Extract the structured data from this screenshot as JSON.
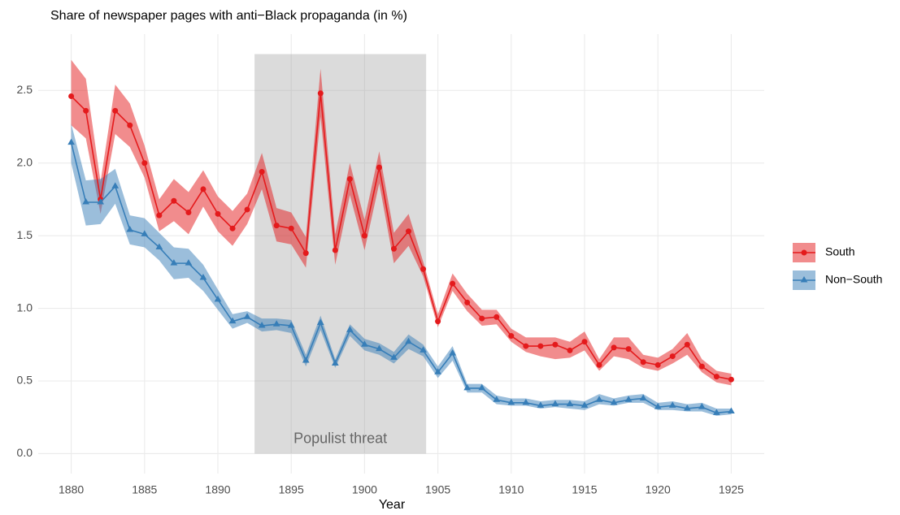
{
  "chart_data": {
    "type": "line",
    "title": "Share of newspaper pages with anti−Black propaganda (in %)",
    "x_label": "Year",
    "x": [
      1880,
      1881,
      1882,
      1883,
      1884,
      1885,
      1886,
      1887,
      1888,
      1889,
      1890,
      1891,
      1892,
      1893,
      1894,
      1895,
      1896,
      1897,
      1898,
      1899,
      1900,
      1901,
      1902,
      1903,
      1904,
      1905,
      1906,
      1907,
      1908,
      1909,
      1910,
      1911,
      1912,
      1913,
      1914,
      1915,
      1916,
      1917,
      1918,
      1919,
      1920,
      1921,
      1922,
      1923,
      1924,
      1925
    ],
    "series": [
      {
        "name": "South",
        "color": "#e41a1c",
        "marker": "circle",
        "values": [
          2.46,
          2.36,
          1.75,
          2.36,
          2.26,
          2.0,
          1.64,
          1.74,
          1.66,
          1.82,
          1.65,
          1.55,
          1.68,
          1.94,
          1.57,
          1.55,
          1.38,
          2.48,
          1.4,
          1.89,
          1.5,
          1.97,
          1.41,
          1.53,
          1.27,
          0.91,
          1.17,
          1.04,
          0.93,
          0.94,
          0.81,
          0.74,
          0.74,
          0.75,
          0.71,
          0.77,
          0.61,
          0.73,
          0.72,
          0.63,
          0.61,
          0.67,
          0.75,
          0.6,
          0.53,
          0.51
        ],
        "upper": [
          2.71,
          2.58,
          1.87,
          2.54,
          2.41,
          2.12,
          1.75,
          1.89,
          1.8,
          1.95,
          1.77,
          1.67,
          1.79,
          2.07,
          1.69,
          1.66,
          1.49,
          2.65,
          1.51,
          2.0,
          1.61,
          2.08,
          1.52,
          1.65,
          1.32,
          0.96,
          1.24,
          1.1,
          0.99,
          0.99,
          0.86,
          0.8,
          0.8,
          0.8,
          0.77,
          0.84,
          0.65,
          0.8,
          0.8,
          0.68,
          0.66,
          0.72,
          0.83,
          0.65,
          0.57,
          0.55
        ],
        "lower": [
          2.26,
          2.17,
          1.65,
          2.2,
          2.11,
          1.9,
          1.53,
          1.6,
          1.51,
          1.7,
          1.53,
          1.43,
          1.58,
          1.82,
          1.46,
          1.44,
          1.28,
          2.32,
          1.3,
          1.78,
          1.4,
          1.86,
          1.31,
          1.43,
          1.22,
          0.87,
          1.12,
          0.98,
          0.88,
          0.89,
          0.77,
          0.7,
          0.67,
          0.65,
          0.66,
          0.71,
          0.57,
          0.67,
          0.65,
          0.59,
          0.57,
          0.62,
          0.68,
          0.56,
          0.49,
          0.47
        ]
      },
      {
        "name": "Non−South",
        "color": "#377eb8",
        "marker": "triangle",
        "values": [
          2.14,
          1.73,
          1.73,
          1.84,
          1.54,
          1.51,
          1.42,
          1.31,
          1.31,
          1.21,
          1.06,
          0.91,
          0.94,
          0.88,
          0.89,
          0.88,
          0.64,
          0.9,
          0.62,
          0.85,
          0.75,
          0.72,
          0.66,
          0.77,
          0.71,
          0.56,
          0.69,
          0.45,
          0.45,
          0.37,
          0.35,
          0.35,
          0.33,
          0.34,
          0.34,
          0.33,
          0.37,
          0.35,
          0.37,
          0.38,
          0.32,
          0.33,
          0.31,
          0.32,
          0.28,
          0.29
        ],
        "upper": [
          2.27,
          1.88,
          1.89,
          1.96,
          1.64,
          1.62,
          1.52,
          1.42,
          1.41,
          1.3,
          1.13,
          0.96,
          0.98,
          0.93,
          0.93,
          0.92,
          0.68,
          0.95,
          0.65,
          0.89,
          0.79,
          0.76,
          0.7,
          0.82,
          0.75,
          0.6,
          0.74,
          0.48,
          0.48,
          0.4,
          0.38,
          0.38,
          0.36,
          0.37,
          0.37,
          0.36,
          0.41,
          0.38,
          0.4,
          0.41,
          0.35,
          0.36,
          0.34,
          0.35,
          0.31,
          0.31
        ],
        "lower": [
          2.0,
          1.57,
          1.58,
          1.72,
          1.44,
          1.42,
          1.33,
          1.2,
          1.21,
          1.12,
          0.99,
          0.86,
          0.9,
          0.84,
          0.85,
          0.83,
          0.6,
          0.85,
          0.59,
          0.81,
          0.71,
          0.68,
          0.62,
          0.72,
          0.67,
          0.52,
          0.64,
          0.42,
          0.42,
          0.34,
          0.33,
          0.33,
          0.31,
          0.32,
          0.31,
          0.3,
          0.34,
          0.33,
          0.35,
          0.35,
          0.3,
          0.3,
          0.29,
          0.29,
          0.26,
          0.27
        ]
      }
    ],
    "shaded_region": {
      "label": "Populist threat",
      "x": [
        1892.5,
        1904.2
      ],
      "y": [
        0,
        2.75
      ],
      "label_y": 0.1
    },
    "xlim": [
      1877.75,
      1927.25
    ],
    "ylim": [
      -0.1375,
      2.8875
    ],
    "xticks": [
      1880,
      1885,
      1890,
      1895,
      1900,
      1905,
      1910,
      1915,
      1920,
      1925
    ],
    "yticks": [
      {
        "value": 0,
        "label": "0.0"
      },
      0.5,
      {
        "value": 1,
        "label": "1.0"
      },
      1.5,
      {
        "value": 2,
        "label": "2.0"
      },
      2.5
    ],
    "grid": true,
    "legend": "right"
  }
}
